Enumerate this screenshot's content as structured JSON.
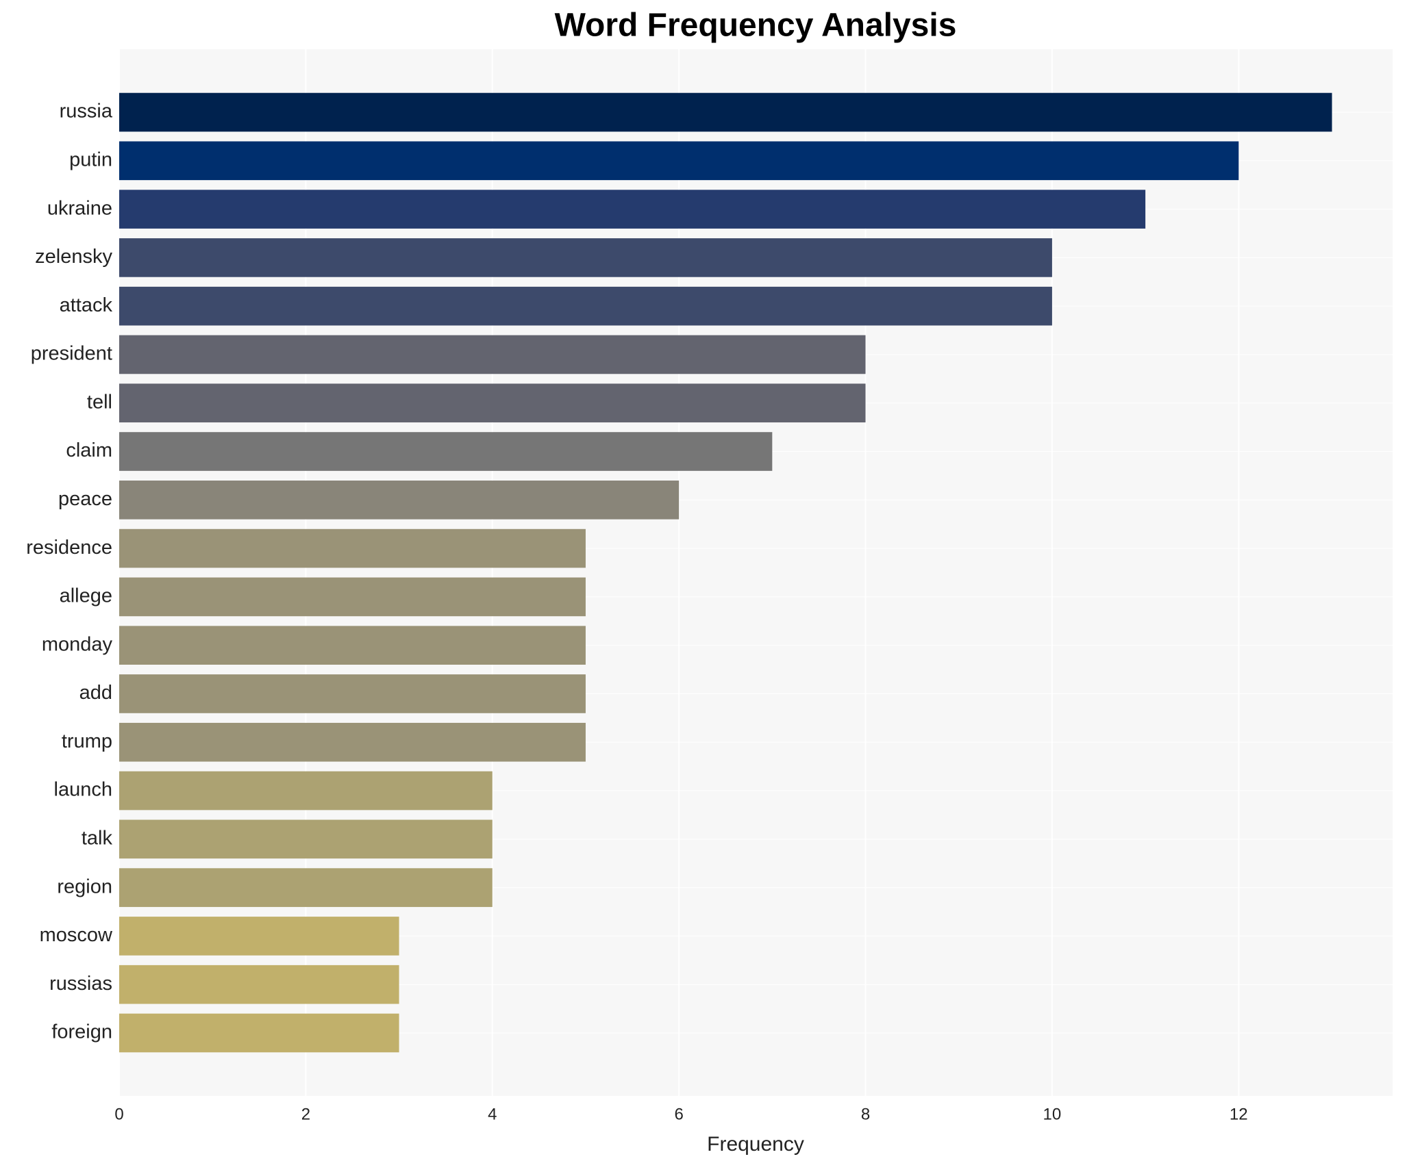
{
  "chart_data": {
    "type": "barh",
    "title": "Word Frequency Analysis",
    "x_label": "Frequency",
    "categories": [
      "russia",
      "putin",
      "ukraine",
      "zelensky",
      "attack",
      "president",
      "tell",
      "claim",
      "peace",
      "residence",
      "allege",
      "monday",
      "add",
      "trump",
      "launch",
      "talk",
      "region",
      "moscow",
      "russias",
      "foreign"
    ],
    "values": [
      13,
      12,
      11,
      10,
      10,
      8,
      8,
      7,
      6,
      5,
      5,
      5,
      5,
      5,
      4,
      4,
      4,
      3,
      3,
      3
    ],
    "colors": [
      "#00224e",
      "#002f6e",
      "#253b6e",
      "#3d4a6b",
      "#3d4a6b",
      "#63646f",
      "#63646f",
      "#767676",
      "#898579",
      "#9a9377",
      "#9a9377",
      "#9a9377",
      "#9a9377",
      "#9a9377",
      "#aca272",
      "#aca272",
      "#aca272",
      "#c1b06b",
      "#c1b06b",
      "#c1b06b"
    ],
    "xlim": [
      0,
      13.65
    ],
    "xticks": [
      0,
      2,
      4,
      6,
      8,
      10,
      12
    ],
    "grid": true
  }
}
